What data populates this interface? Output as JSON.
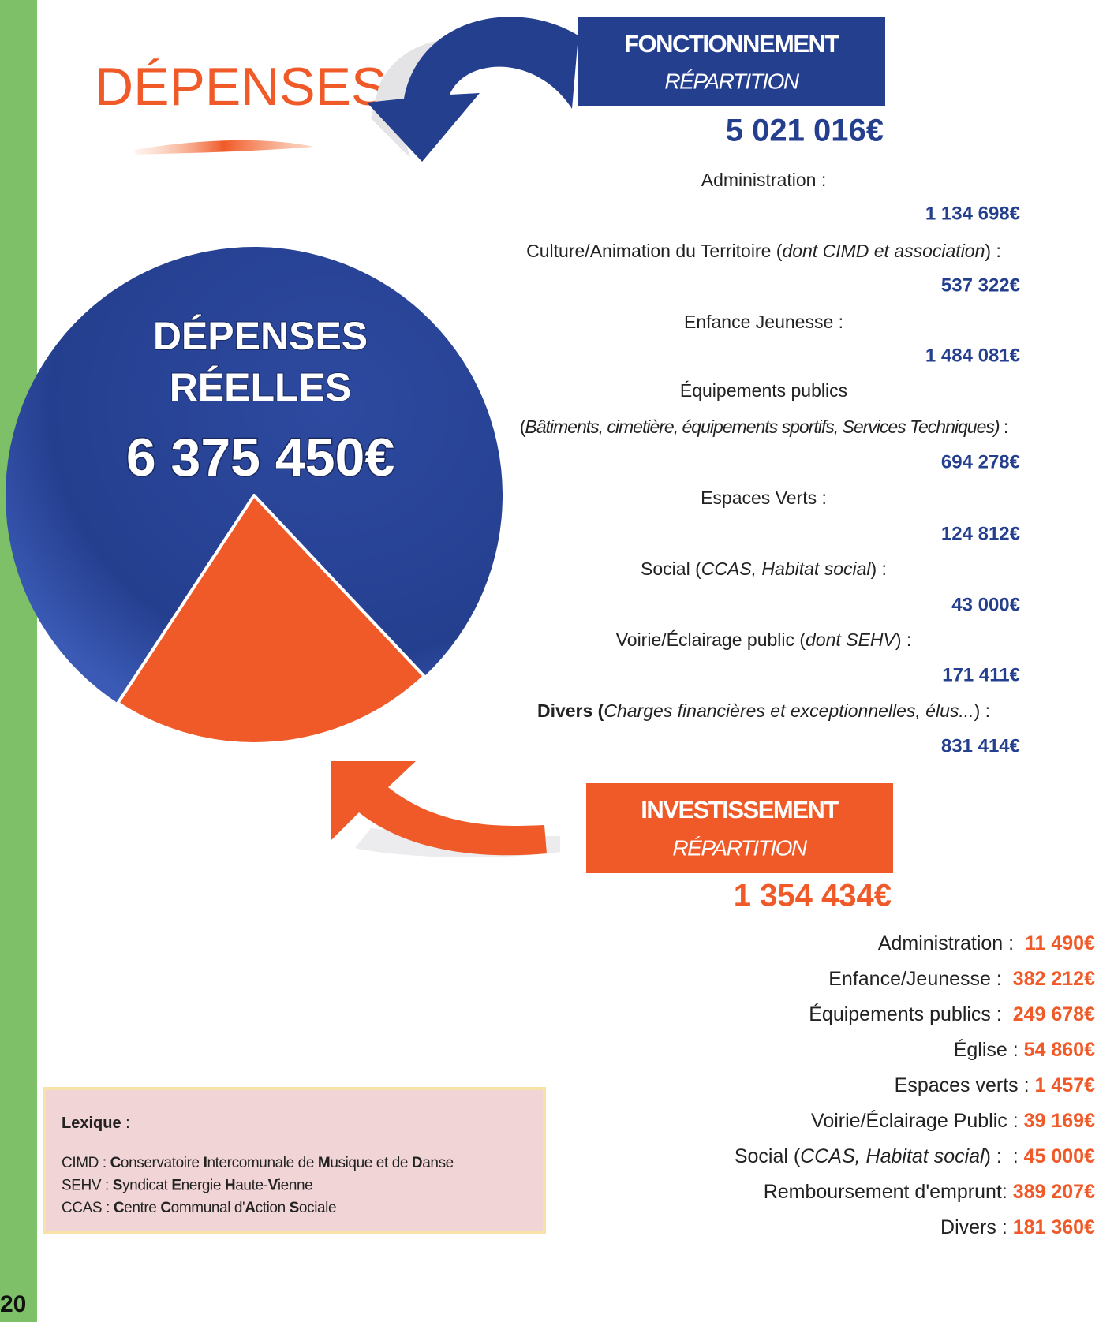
{
  "page_number": "20",
  "title": "DÉPENSES",
  "pie": {
    "title_lines": [
      "DÉPENSES",
      "RÉELLES"
    ],
    "total": "6 375 450€"
  },
  "fonctionnement": {
    "title": "FONCTIONNEMENT",
    "subtitle": "RÉPARTITION",
    "total": {
      "value": 5021016,
      "label": "5 021 016€"
    },
    "color": "#253f8f",
    "items": [
      {
        "lines": [
          [
            {
              "text": "Administration :"
            }
          ]
        ],
        "value": "1 134 698€"
      },
      {
        "lines": [
          [
            {
              "text": "Culture/Animation du Territoire ("
            },
            {
              "text": "dont CIMD et association",
              "style": "italic"
            },
            {
              "text": ") :"
            }
          ]
        ],
        "value": "537 322€"
      },
      {
        "lines": [
          [
            {
              "text": "Enfance Jeunesse :"
            }
          ]
        ],
        "value": "1 484 081€"
      },
      {
        "lines": [
          [
            {
              "text": "Équipements publics"
            }
          ],
          [
            {
              "text": "("
            },
            {
              "text": "Bâtiments, cimetière, équipements sportifs, Services Techniques)",
              "style": "italic"
            },
            {
              "text": " :"
            }
          ]
        ],
        "value": "694 278€"
      },
      {
        "lines": [
          [
            {
              "text": "Espaces Verts :"
            }
          ]
        ],
        "value": "124 812€"
      },
      {
        "lines": [
          [
            {
              "text": "Social ("
            },
            {
              "text": "CCAS, Habitat social",
              "style": "italic"
            },
            {
              "text": ") :"
            }
          ]
        ],
        "value": "43 000€"
      },
      {
        "lines": [
          [
            {
              "text": "Voirie/Éclairage public ("
            },
            {
              "text": "dont SEHV",
              "style": "italic"
            },
            {
              "text": ") :"
            }
          ]
        ],
        "value": "171 411€"
      },
      {
        "lines": [
          [
            {
              "text": "Divers (",
              "style": "bold"
            },
            {
              "text": "Charges financières et exceptionnelles, élus...",
              "style": "italic"
            },
            {
              "text": ") :"
            }
          ]
        ],
        "value": "831 414€"
      }
    ]
  },
  "investissement": {
    "title": "INVESTISSEMENT",
    "subtitle": "RÉPARTITION",
    "total": {
      "value": 1354434,
      "label": "1 354 434€"
    },
    "color": "#f05a28",
    "items": [
      {
        "label": [
          {
            "text": "Administration :  "
          }
        ],
        "value": "11 490€"
      },
      {
        "label": [
          {
            "text": "Enfance/Jeunesse :  "
          }
        ],
        "value": "382 212€"
      },
      {
        "label": [
          {
            "text": "Équipements publics :  "
          }
        ],
        "value": "249 678€"
      },
      {
        "label": [
          {
            "text": "Église : "
          }
        ],
        "value": "54 860€"
      },
      {
        "label": [
          {
            "text": "Espaces verts : "
          }
        ],
        "value": "1 457€"
      },
      {
        "label": [
          {
            "text": "Voirie/Éclairage Public : "
          }
        ],
        "value": "39 169€"
      },
      {
        "label": [
          {
            "text": "Social ("
          },
          {
            "text": "CCAS, Habitat social",
            "style": "italic"
          },
          {
            "text": ") :  : "
          }
        ],
        "value": "45 000€"
      },
      {
        "label": [
          {
            "text": "Remboursement d'emprunt: "
          }
        ],
        "value": "389 207€"
      },
      {
        "label": [
          {
            "text": "Divers : "
          }
        ],
        "value": "181 360€"
      }
    ]
  },
  "lexique": {
    "title": [
      {
        "text": "Lexique",
        "style": "bold"
      },
      {
        "text": " :"
      }
    ],
    "lines": [
      [
        {
          "text": "CIMD : "
        },
        {
          "text": "C",
          "style": "bold"
        },
        {
          "text": "onservatoire "
        },
        {
          "text": "I",
          "style": "bold"
        },
        {
          "text": "ntercomunale de "
        },
        {
          "text": "M",
          "style": "bold"
        },
        {
          "text": "usique et de "
        },
        {
          "text": "D",
          "style": "bold"
        },
        {
          "text": "anse"
        }
      ],
      [
        {
          "text": "SEHV : "
        },
        {
          "text": "S",
          "style": "bold"
        },
        {
          "text": "yndicat "
        },
        {
          "text": "E",
          "style": "bold"
        },
        {
          "text": "nergie "
        },
        {
          "text": "H",
          "style": "bold"
        },
        {
          "text": "aute-"
        },
        {
          "text": "V",
          "style": "bold"
        },
        {
          "text": "ienne"
        }
      ],
      [
        {
          "text": "CCAS : "
        },
        {
          "text": "C",
          "style": "bold"
        },
        {
          "text": "entre "
        },
        {
          "text": "C",
          "style": "bold"
        },
        {
          "text": "ommunal d'"
        },
        {
          "text": "A",
          "style": "bold"
        },
        {
          "text": "ction "
        },
        {
          "text": "S",
          "style": "bold"
        },
        {
          "text": "ociale"
        }
      ]
    ]
  }
}
